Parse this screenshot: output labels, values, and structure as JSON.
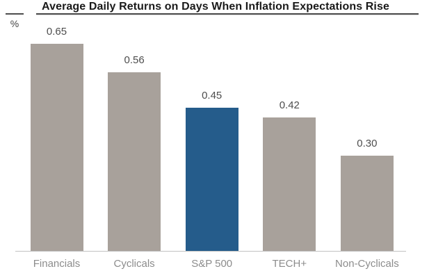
{
  "title": "Average Daily Returns on Days When Inflation Expectations Rise",
  "unit_label": "%",
  "chart_data": {
    "type": "bar",
    "title": "Average Daily Returns on Days When Inflation Expectations Rise",
    "categories": [
      "Financials",
      "Cyclicals",
      "S&P 500",
      "TECH+",
      "Non-Cyclicals"
    ],
    "values": [
      0.65,
      0.56,
      0.45,
      0.42,
      0.3
    ],
    "value_labels": [
      "0.65",
      "0.56",
      "0.45",
      "0.42",
      "0.30"
    ],
    "xlabel": "",
    "ylabel": "%",
    "ylim": [
      0,
      0.7
    ],
    "grid": false,
    "legend": "none",
    "highlight_index": 2,
    "bar_color": "#a8a19b",
    "highlight_color": "#255c8b"
  },
  "colors": {
    "title_text": "#1a1a1a",
    "value_label": "#4d4d4d",
    "category_label": "#8c8c8c",
    "axis_line": "#c2c2c2",
    "underline": "#4d4d4d",
    "background": "#ffffff"
  }
}
